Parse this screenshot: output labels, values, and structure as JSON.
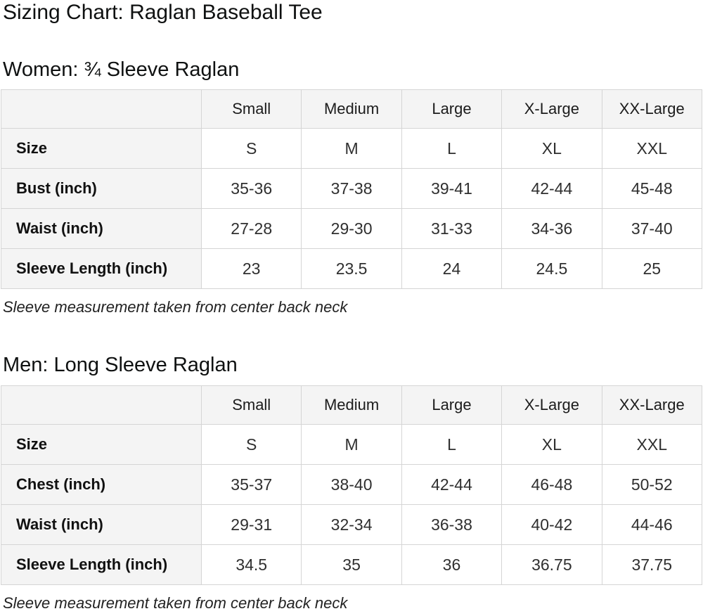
{
  "page": {
    "title": "Sizing Chart: Raglan Baseball Tee"
  },
  "colors": {
    "header_cell_bg": "#f4f4f4",
    "table_border": "#d5d5d5",
    "heading_text": "#0f1111",
    "value_text": "#2f2f2f"
  },
  "sections": [
    {
      "heading": "Women: ¾ Sleeve Raglan",
      "note": "Sleeve measurement taken from center back neck",
      "table": {
        "column_headers": [
          "",
          "Small",
          "Medium",
          "Large",
          "X-Large",
          "XX-Large"
        ],
        "rows": [
          {
            "label": "Size",
            "values": [
              "S",
              "M",
              "L",
              "XL",
              "XXL"
            ]
          },
          {
            "label": "Bust (inch)",
            "values": [
              "35-36",
              "37-38",
              "39-41",
              "42-44",
              "45-48"
            ]
          },
          {
            "label": "Waist (inch)",
            "values": [
              "27-28",
              "29-30",
              "31-33",
              "34-36",
              "37-40"
            ]
          },
          {
            "label": "Sleeve Length (inch)",
            "values": [
              "23",
              "23.5",
              "24",
              "24.5",
              "25"
            ]
          }
        ]
      }
    },
    {
      "heading": "Men: Long Sleeve Raglan",
      "note": "Sleeve measurement taken from center back neck",
      "table": {
        "column_headers": [
          "",
          "Small",
          "Medium",
          "Large",
          "X-Large",
          "XX-Large"
        ],
        "rows": [
          {
            "label": "Size",
            "values": [
              "S",
              "M",
              "L",
              "XL",
              "XXL"
            ]
          },
          {
            "label": "Chest (inch)",
            "values": [
              "35-37",
              "38-40",
              "42-44",
              "46-48",
              "50-52"
            ]
          },
          {
            "label": "Waist (inch)",
            "values": [
              "29-31",
              "32-34",
              "36-38",
              "40-42",
              "44-46"
            ]
          },
          {
            "label": "Sleeve Length (inch)",
            "values": [
              "34.5",
              "35",
              "36",
              "36.75",
              "37.75"
            ]
          }
        ]
      }
    }
  ]
}
